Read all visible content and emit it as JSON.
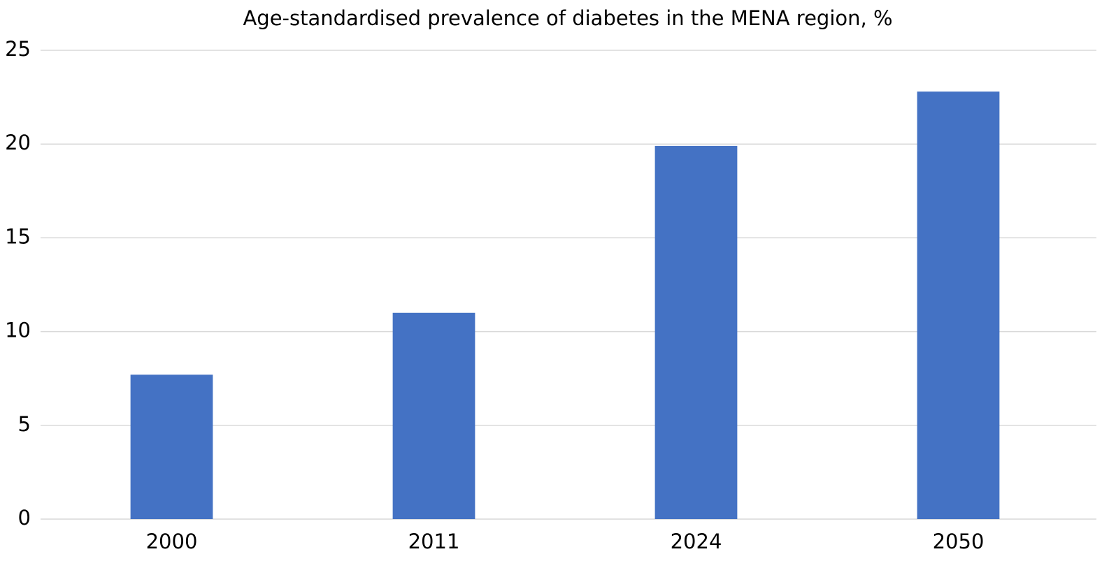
{
  "chart_data": {
    "type": "bar",
    "title": "Age-standardised prevalence of diabetes in the MENA region, %",
    "categories": [
      "2000",
      "2011",
      "2024",
      "2050"
    ],
    "values": [
      7.7,
      11.0,
      19.9,
      22.8
    ],
    "color": "#4472c4",
    "ylim": [
      0,
      25
    ],
    "yticks": [
      0,
      5,
      10,
      15,
      20,
      25
    ],
    "grid": true
  }
}
